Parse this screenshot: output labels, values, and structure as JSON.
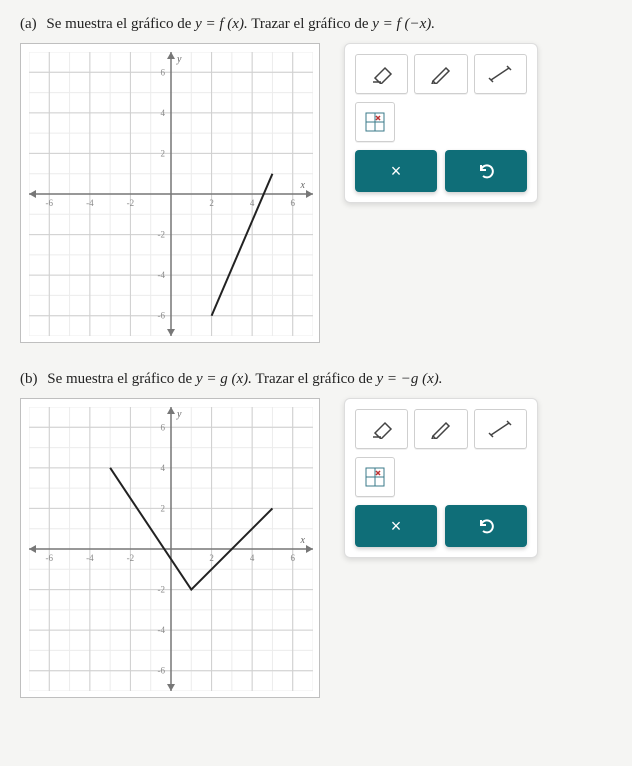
{
  "problems": [
    {
      "label": "(a)",
      "prompt_prefix": "Se muestra el gráfico de ",
      "eq1": "y = f (x).",
      "prompt_mid": " Trazar el gráfico de ",
      "eq2": "y = f (−x).",
      "graph": {
        "xlim": [
          -7,
          7
        ],
        "ylim": [
          -7,
          7
        ],
        "xticks": [
          -6,
          -4,
          -2,
          2,
          4,
          6
        ],
        "yticks": [
          -6,
          -4,
          -2,
          2,
          4,
          6
        ],
        "x_axis_label": "x",
        "y_axis_label": "y",
        "grid_major": "#cfcfcf",
        "grid_minor": "#ececec",
        "axis_color": "#777",
        "curve_color": "#222",
        "curve_width": 2,
        "curve_type": "polyline",
        "curve_points": [
          [
            2,
            -6
          ],
          [
            5,
            1
          ]
        ],
        "background": "#ffffff"
      }
    },
    {
      "label": "(b)",
      "prompt_prefix": "Se muestra el gráfico de ",
      "eq1": "y = g (x).",
      "prompt_mid": " Trazar el gráfico de ",
      "eq2": "y = −g (x).",
      "graph": {
        "xlim": [
          -7,
          7
        ],
        "ylim": [
          -7,
          7
        ],
        "xticks": [
          -6,
          -4,
          -2,
          2,
          4,
          6
        ],
        "yticks": [
          -6,
          -4,
          -2,
          2,
          4,
          6
        ],
        "x_axis_label": "x",
        "y_axis_label": "y",
        "grid_major": "#cfcfcf",
        "grid_minor": "#ececec",
        "axis_color": "#777",
        "curve_color": "#222",
        "curve_width": 2,
        "curve_type": "polyline",
        "curve_points": [
          [
            -3,
            4
          ],
          [
            1,
            -2
          ],
          [
            5,
            2
          ]
        ],
        "background": "#ffffff"
      }
    }
  ],
  "toolbox": {
    "tools": [
      "eraser",
      "pencil",
      "line",
      "point-grid"
    ],
    "action_color": "#0f6e78",
    "clear_symbol": "×",
    "undo_symbol": "↶"
  }
}
